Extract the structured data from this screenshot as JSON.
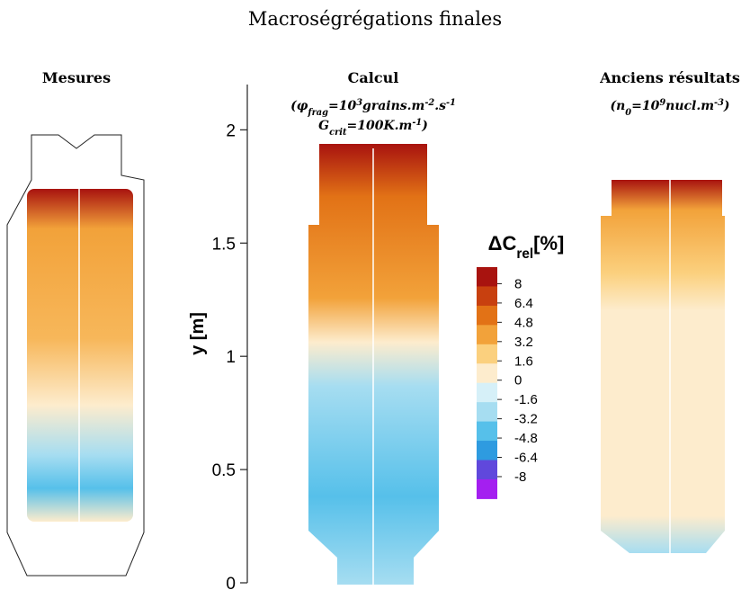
{
  "title": "Macroségrégations finales",
  "panels": [
    {
      "title": "Mesures"
    },
    {
      "title": "Calcul",
      "subtitle_lines": [
        [
          {
            "text": "(φ"
          },
          {
            "text": "frag",
            "kind": "sub"
          },
          {
            "text": "=10"
          },
          {
            "text": "3",
            "kind": "sup"
          },
          {
            "text": "grains.m"
          },
          {
            "text": "-2",
            "kind": "sup"
          },
          {
            "text": ".s"
          },
          {
            "text": "-1",
            "kind": "sup"
          }
        ],
        [
          {
            "text": "G"
          },
          {
            "text": "crit",
            "kind": "sub"
          },
          {
            "text": "=100K.m"
          },
          {
            "text": "-1",
            "kind": "sup"
          },
          {
            "text": ")"
          }
        ]
      ]
    },
    {
      "title": "Anciens résultats",
      "subtitle_lines": [
        [
          {
            "text": "(n"
          },
          {
            "text": "0",
            "kind": "sub"
          },
          {
            "text": "=10"
          },
          {
            "text": "9",
            "kind": "sup"
          },
          {
            "text": "nucl.m"
          },
          {
            "text": "-3",
            "kind": "sup"
          },
          {
            "text": ")"
          }
        ]
      ]
    }
  ],
  "y_axis": {
    "label": "y [m]",
    "ylim": [
      0,
      2.2
    ],
    "yticks": [
      0,
      0.5,
      1,
      1.5,
      2
    ]
  },
  "colorbar": {
    "title": [
      {
        "text": "ΔC"
      },
      {
        "text": "rel",
        "kind": "sub"
      },
      {
        "text": "[%]"
      }
    ],
    "levels": [
      8,
      6.4,
      4.8,
      3.2,
      1.6,
      0,
      -1.6,
      -3.2,
      -4.8,
      -6.4,
      -8
    ],
    "colors": [
      "#a8130f",
      "#c8400f",
      "#e27216",
      "#f2a23a",
      "#fbd07e",
      "#fdeccd",
      "#d6f0f8",
      "#a6ddf1",
      "#56c0ea",
      "#2e9be0",
      "#6048dc",
      "#a41ff0"
    ]
  }
}
